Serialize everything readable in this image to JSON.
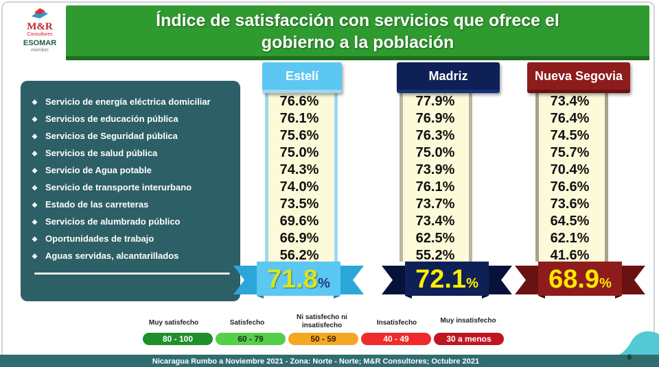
{
  "header": {
    "title_line1": "Índice de satisfacción con servicios que ofrece el",
    "title_line2": "gobierno a la población"
  },
  "logo": {
    "brand": "M&R",
    "brand_sub": "Consultores",
    "esomar": "ESOMAR",
    "member": "member"
  },
  "services": [
    "Servicio de energía eléctrica domiciliar",
    "Servicios de educación pública",
    "Servicios de Seguridad pública",
    "Servicios de salud pública",
    "Servicio de Agua potable",
    "Servicio de transporte interurbano",
    "Estado de las carreteras",
    "Servicios de alumbrado público",
    "Oportunidades de trabajo",
    "Aguas servidas, alcantarillados"
  ],
  "columns": [
    {
      "name": "Estelí",
      "values": [
        "76.6%",
        "76.1%",
        "75.6%",
        "75.0%",
        "74.3%",
        "74.0%",
        "73.5%",
        "69.6%",
        "66.9%",
        "56.2%"
      ],
      "total": "71.8",
      "total_pct": "%",
      "color": "#5cc7f2"
    },
    {
      "name": "Madriz",
      "values": [
        "77.9%",
        "76.9%",
        "76.3%",
        "75.0%",
        "73.9%",
        "76.1%",
        "73.7%",
        "73.4%",
        "62.5%",
        "55.2%"
      ],
      "total": "72.1",
      "total_pct": "%",
      "color": "#0f2057"
    },
    {
      "name": "Nueva Segovia",
      "values": [
        "73.4%",
        "76.4%",
        "74.5%",
        "75.7%",
        "70.4%",
        "76.6%",
        "73.6%",
        "64.5%",
        "62.1%",
        "41.6%"
      ],
      "total": "68.9",
      "total_pct": "%",
      "color": "#8e1c1c"
    }
  ],
  "legend": [
    {
      "label": "Muy satisfecho",
      "range": "80 - 100",
      "color": "#1e8f2b"
    },
    {
      "label": "Satisfecho",
      "range": "60 - 79",
      "color": "#55cf4a"
    },
    {
      "label": "Ni satisfecho ni insatisfecho",
      "range": "50 - 59",
      "color": "#f6a623"
    },
    {
      "label": "Insatisfecho",
      "range": "40 - 49",
      "color": "#ee2a2a"
    },
    {
      "label": "Muy insatisfecho",
      "range": "30 a menos",
      "color": "#c01622"
    }
  ],
  "footer": {
    "text": "Nicaragua Rumbo a Noviembre 2021 - Zona: Norte - Norte; M&R Consultores; Octubre 2021",
    "page_number": "6"
  }
}
